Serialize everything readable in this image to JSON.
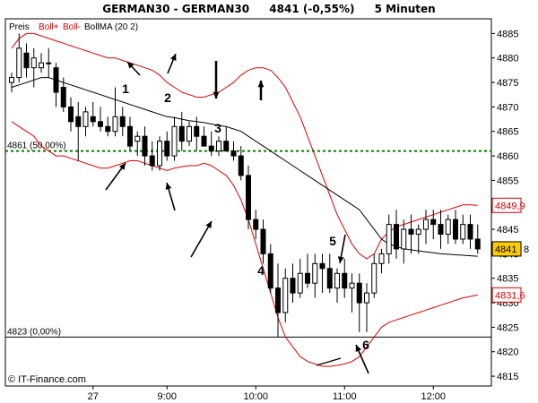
{
  "header": {
    "instrument": "GERMAN30 - GERMAN30",
    "price": "4841 (-0,55%)",
    "interval": "5 Minuten"
  },
  "legend": {
    "preis": "Preis",
    "boll_upper": "Boll+",
    "boll_lower": "Boll-",
    "boll_ma": "BollMA (20 2)"
  },
  "watermark": "© IT-Finance.com",
  "colors": {
    "bollinger": "#e00000",
    "ma": "#000000",
    "fib_50": "#008000",
    "price_tag": "#ffcc00"
  },
  "chart_data": {
    "type": "candlestick",
    "x_tick_labels": [
      "27",
      "9:00",
      "10:00",
      "11:00",
      "12:00"
    ],
    "y_ticks": [
      4815,
      4820,
      4825,
      4830,
      4835,
      4840,
      4845,
      4850,
      4855,
      4860,
      4865,
      4870,
      4875,
      4880,
      4885
    ],
    "ylim": [
      4813,
      4888
    ],
    "fib_levels": [
      {
        "label": "4861 (50,00%)",
        "value": 4861
      },
      {
        "label": "4823 (0,00%)",
        "value": 4823
      }
    ],
    "price_tags": [
      {
        "label": "4849,9",
        "value": 4849.9
      },
      {
        "label": "4841",
        "value": 4841
      },
      {
        "label": "4831,6",
        "value": 4831.6
      }
    ],
    "last_tag_suffix": "8",
    "annotations": [
      "1",
      "2",
      "3",
      "4",
      "5",
      "6"
    ],
    "candles": [
      [
        4875,
        4877,
        4873,
        4876
      ],
      [
        4876,
        4885,
        4875,
        4882
      ],
      [
        4881,
        4883,
        4876,
        4878
      ],
      [
        4878,
        4882,
        4874,
        4880
      ],
      [
        4878,
        4881,
        4877,
        4879
      ],
      [
        4879,
        4882,
        4876,
        4879
      ],
      [
        4878,
        4879,
        4870,
        4873
      ],
      [
        4874,
        4876,
        4869,
        4870
      ],
      [
        4870,
        4872,
        4865,
        4867
      ],
      [
        4868,
        4871,
        4859,
        4866
      ],
      [
        4866,
        4870,
        4864,
        4869
      ],
      [
        4868,
        4871,
        4866,
        4867
      ],
      [
        4867,
        4870,
        4865,
        4866
      ],
      [
        4866,
        4868,
        4864,
        4865
      ],
      [
        4865,
        4874,
        4864,
        4868
      ],
      [
        4868,
        4870,
        4864,
        4866
      ],
      [
        4866,
        4868,
        4861,
        4862
      ],
      [
        4863,
        4865,
        4860,
        4864
      ],
      [
        4864,
        4866,
        4858,
        4860
      ],
      [
        4860,
        4863,
        4857,
        4858
      ],
      [
        4858,
        4864,
        4857,
        4863
      ],
      [
        4863,
        4865,
        4859,
        4860
      ],
      [
        4860,
        4868,
        4859,
        4866
      ],
      [
        4866,
        4869,
        4861,
        4863
      ],
      [
        4863,
        4867,
        4862,
        4866
      ],
      [
        4866,
        4868,
        4861,
        4864
      ],
      [
        4864,
        4866,
        4862,
        4862
      ],
      [
        4862,
        4865,
        4860,
        4861
      ],
      [
        4861,
        4864,
        4860,
        4863
      ],
      [
        4863,
        4866,
        4861,
        4861
      ],
      [
        4861,
        4863,
        4859,
        4860
      ],
      [
        4860,
        4862,
        4855,
        4856
      ],
      [
        4856,
        4858,
        4845,
        4847
      ],
      [
        4847,
        4849,
        4843,
        4845
      ],
      [
        4845,
        4847,
        4838,
        4840
      ],
      [
        4840,
        4842,
        4832,
        4833
      ],
      [
        4833,
        4838,
        4823,
        4828
      ],
      [
        4828,
        4837,
        4826,
        4835
      ],
      [
        4835,
        4838,
        4830,
        4832
      ],
      [
        4832,
        4839,
        4831,
        4836
      ],
      [
        4836,
        4840,
        4833,
        4834
      ],
      [
        4834,
        4840,
        4831,
        4838
      ],
      [
        4838,
        4840,
        4832,
        4837
      ],
      [
        4837,
        4840,
        4832,
        4833
      ],
      [
        4833,
        4837,
        4830,
        4836
      ],
      [
        4836,
        4839,
        4831,
        4833
      ],
      [
        4833,
        4836,
        4828,
        4834
      ],
      [
        4834,
        4836,
        4824,
        4830
      ],
      [
        4830,
        4834,
        4824,
        4832
      ],
      [
        4832,
        4840,
        4831,
        4838
      ],
      [
        4838,
        4841,
        4836,
        4840
      ],
      [
        4840,
        4848,
        4838,
        4846
      ],
      [
        4846,
        4849,
        4839,
        4841
      ],
      [
        4841,
        4847,
        4838,
        4845
      ],
      [
        4845,
        4848,
        4840,
        4844
      ],
      [
        4844,
        4846,
        4840,
        4845
      ],
      [
        4845,
        4849,
        4842,
        4847
      ],
      [
        4847,
        4849,
        4843,
        4846
      ],
      [
        4846,
        4849,
        4841,
        4844
      ],
      [
        4844,
        4848,
        4842,
        4847
      ],
      [
        4847,
        4849,
        4842,
        4843
      ],
      [
        4843,
        4848,
        4842,
        4846
      ],
      [
        4846,
        4848,
        4841,
        4843
      ],
      [
        4843,
        4846,
        4840,
        4841
      ]
    ],
    "ma_values": [
      4874,
      4874.5,
      4875,
      4875.5,
      4876,
      4876,
      4875.5,
      4875,
      4874.5,
      4874,
      4873.5,
      4873,
      4872.5,
      4872,
      4871.5,
      4871,
      4870.5,
      4870,
      4869.5,
      4869,
      4868.5,
      4868,
      4867.8,
      4867.5,
      4867.2,
      4867,
      4866.8,
      4866.5,
      4866.2,
      4866,
      4865.5,
      4865,
      4864,
      4863,
      4862,
      4861,
      4860,
      4859,
      4858,
      4857,
      4856,
      4855,
      4854,
      4853,
      4852,
      4851,
      4850,
      4849,
      4847,
      4845,
      4843,
      4842,
      4841.5,
      4841,
      4840.8,
      4840.6,
      4840.4,
      4840.2,
      4840,
      4839.9,
      4839.8,
      4839.7,
      4839.6,
      4839.5
    ],
    "upper_band": [
      4882,
      4884,
      4885,
      4885,
      4884.5,
      4884,
      4883.5,
      4883,
      4882.5,
      4882,
      4881.5,
      4881,
      4880.5,
      4880,
      4880,
      4879.5,
      4879,
      4878.5,
      4878,
      4877.5,
      4876.5,
      4875,
      4874,
      4873,
      4872.5,
      4872,
      4872,
      4872.5,
      4873,
      4874,
      4875,
      4876.5,
      4877.5,
      4878,
      4878,
      4877.5,
      4876,
      4874,
      4871,
      4868,
      4864,
      4860,
      4856,
      4852,
      4848,
      4845,
      4842,
      4840,
      4839,
      4840,
      4843,
      4844.5,
      4845.5,
      4846,
      4846.5,
      4847,
      4847.5,
      4848,
      4848.5,
      4849,
      4849.5,
      4850,
      4850,
      4849.9
    ],
    "lower_band": [
      4867,
      4866,
      4865,
      4864,
      4862,
      4861,
      4860,
      4860,
      4859.5,
      4859,
      4858.5,
      4858,
      4857.5,
      4857.5,
      4858,
      4858.5,
      4859,
      4859,
      4858.5,
      4858,
      4857.5,
      4857,
      4857.5,
      4857.8,
      4858,
      4858,
      4858.5,
      4858,
      4857,
      4856,
      4854,
      4851,
      4847,
      4842,
      4837,
      4832,
      4827,
      4823,
      4821,
      4819,
      4818,
      4817.5,
      4817,
      4817,
      4817.2,
      4817.5,
      4818,
      4819,
      4821,
      4823,
      4825,
      4826,
      4826.5,
      4827,
      4827.5,
      4828,
      4828.5,
      4829,
      4829.5,
      4830,
      4830.5,
      4831,
      4831.3,
      4831.6
    ]
  }
}
